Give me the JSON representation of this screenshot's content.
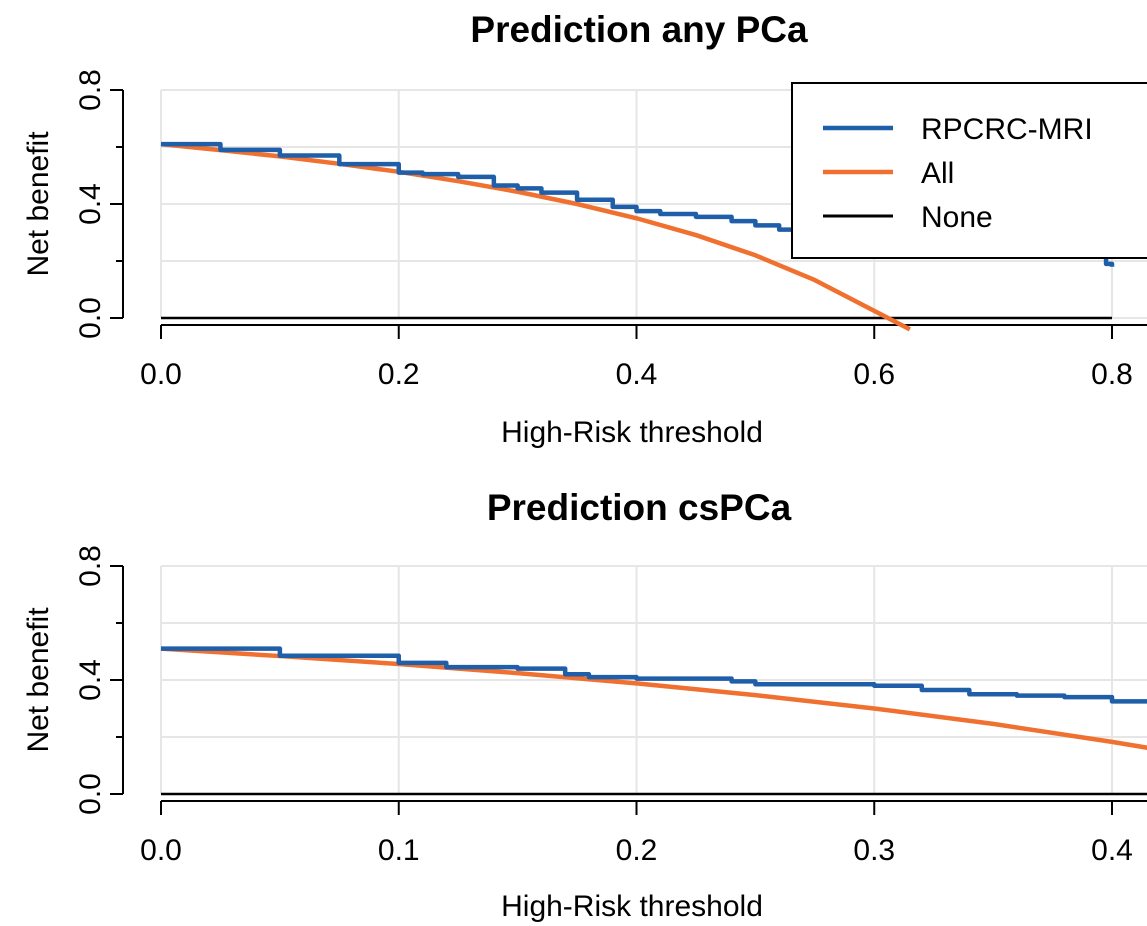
{
  "chart_data": [
    {
      "type": "line",
      "title": "Prediction any PCa",
      "xlabel": "High-Risk threshold",
      "ylabel": "Net benefit",
      "xlim": [
        0.0,
        0.8
      ],
      "ylim": [
        0.0,
        0.8
      ],
      "x_ticks": [
        "0.0",
        "0.2",
        "0.4",
        "0.6",
        "0.8"
      ],
      "y_ticks": [
        "0.0",
        "0.4",
        "0.8"
      ],
      "grid": true,
      "legend_position": "top-right",
      "legend": [
        "RPCRC-MRI",
        "All",
        "None"
      ],
      "colors": {
        "RPCRC-MRI": "#1f5ea8",
        "All": "#f07030",
        "None": "#000000"
      },
      "series": [
        {
          "name": "RPCRC-MRI",
          "x": [
            0.0,
            0.05,
            0.1,
            0.15,
            0.2,
            0.22,
            0.25,
            0.28,
            0.3,
            0.32,
            0.35,
            0.38,
            0.4,
            0.42,
            0.45,
            0.48,
            0.5,
            0.52,
            0.54,
            0.56,
            0.6,
            0.65,
            0.7,
            0.75,
            0.78,
            0.795,
            0.8
          ],
          "y": [
            0.61,
            0.59,
            0.57,
            0.54,
            0.51,
            0.505,
            0.495,
            0.465,
            0.455,
            0.44,
            0.415,
            0.39,
            0.375,
            0.365,
            0.355,
            0.34,
            0.325,
            0.31,
            0.305,
            0.295,
            0.285,
            0.27,
            0.26,
            0.24,
            0.22,
            0.19,
            0.18
          ]
        },
        {
          "name": "All",
          "x": [
            0.0,
            0.05,
            0.1,
            0.15,
            0.2,
            0.25,
            0.3,
            0.35,
            0.4,
            0.45,
            0.5,
            0.55,
            0.6,
            0.63
          ],
          "y": [
            0.61,
            0.589,
            0.567,
            0.541,
            0.513,
            0.48,
            0.443,
            0.4,
            0.35,
            0.291,
            0.22,
            0.133,
            0.025,
            -0.04
          ]
        },
        {
          "name": "None",
          "x": [
            0.0,
            0.8
          ],
          "y": [
            0.0,
            0.0
          ]
        }
      ]
    },
    {
      "type": "line",
      "title": "Prediction csPCa",
      "xlabel": "High-Risk threshold",
      "ylabel": "Net benefit",
      "xlim": [
        0.0,
        0.4
      ],
      "ylim": [
        0.0,
        0.8
      ],
      "x_ticks": [
        "0.0",
        "0.1",
        "0.2",
        "0.3",
        "0.4"
      ],
      "y_ticks": [
        "0.0",
        "0.4",
        "0.8"
      ],
      "grid": true,
      "colors": {
        "RPCRC-MRI": "#1f5ea8",
        "All": "#f07030",
        "None": "#000000"
      },
      "series": [
        {
          "name": "RPCRC-MRI",
          "x": [
            0.0,
            0.05,
            0.1,
            0.12,
            0.15,
            0.17,
            0.18,
            0.2,
            0.22,
            0.24,
            0.25,
            0.28,
            0.3,
            0.32,
            0.34,
            0.36,
            0.38,
            0.4,
            0.42
          ],
          "y": [
            0.51,
            0.485,
            0.46,
            0.445,
            0.44,
            0.42,
            0.41,
            0.405,
            0.405,
            0.395,
            0.385,
            0.385,
            0.38,
            0.365,
            0.35,
            0.345,
            0.34,
            0.325,
            0.31
          ]
        },
        {
          "name": "All",
          "x": [
            0.0,
            0.05,
            0.1,
            0.15,
            0.2,
            0.25,
            0.3,
            0.35,
            0.4,
            0.42
          ],
          "y": [
            0.51,
            0.484,
            0.456,
            0.424,
            0.388,
            0.347,
            0.3,
            0.246,
            0.183,
            0.155
          ]
        },
        {
          "name": "None",
          "x": [
            0.0,
            0.42
          ],
          "y": [
            0.0,
            0.0
          ]
        }
      ]
    }
  ]
}
